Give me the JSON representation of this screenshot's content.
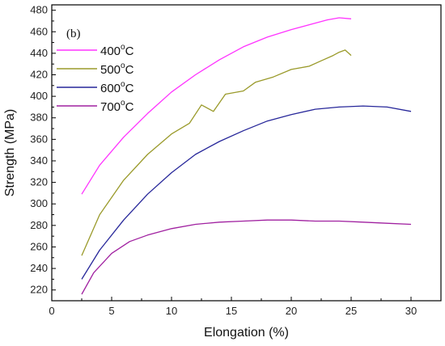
{
  "chart_data": {
    "type": "line",
    "panel_label": "(b)",
    "xlabel": "Elongation (%)",
    "ylabel": "Strength (MPa)",
    "xlim": [
      0,
      32.5
    ],
    "ylim": [
      210,
      485
    ],
    "xticks": [
      0,
      5,
      10,
      15,
      20,
      25,
      30
    ],
    "yticks": [
      220,
      240,
      260,
      280,
      300,
      320,
      340,
      360,
      380,
      400,
      420,
      440,
      460,
      480
    ],
    "grid": false,
    "legend_position": "top-left",
    "series": [
      {
        "name": "400°C",
        "label_base": "400",
        "label_sup": "o",
        "label_unit": "C",
        "color": "#ff33ff",
        "x": [
          2.5,
          4,
          6,
          8,
          10,
          12,
          14,
          16,
          18,
          20,
          22,
          23,
          24,
          25
        ],
        "y": [
          309,
          336,
          362,
          384,
          404,
          420,
          434,
          446,
          455,
          462,
          468,
          471,
          473,
          472
        ]
      },
      {
        "name": "500°C",
        "label_base": "500",
        "label_sup": "o",
        "label_unit": "C",
        "color": "#9a9a2a",
        "x": [
          2.5,
          4,
          6,
          8,
          10,
          11.5,
          12.5,
          13.5,
          14.5,
          16,
          17,
          18.5,
          20,
          21.5,
          22.5,
          23.5,
          24,
          24.5,
          25
        ],
        "y": [
          252,
          290,
          322,
          346,
          365,
          375,
          392,
          386,
          402,
          405,
          413,
          418,
          425,
          428,
          433,
          438,
          441,
          443,
          438
        ]
      },
      {
        "name": "600°C",
        "label_base": "600",
        "label_sup": "o",
        "label_unit": "C",
        "color": "#27279a",
        "x": [
          2.5,
          4,
          6,
          8,
          10,
          12,
          14,
          16,
          18,
          20,
          22,
          24,
          26,
          28,
          30
        ],
        "y": [
          230,
          257,
          285,
          309,
          329,
          346,
          358,
          368,
          377,
          383,
          388,
          390,
          391,
          390,
          386
        ]
      },
      {
        "name": "700°C",
        "label_base": "700",
        "label_sup": "o",
        "label_unit": "C",
        "color": "#a020a0",
        "x": [
          2.5,
          3.5,
          5,
          6.5,
          8,
          10,
          12,
          14,
          16,
          18,
          20,
          22,
          24,
          26,
          28,
          30
        ],
        "y": [
          216,
          236,
          254,
          265,
          271,
          277,
          281,
          283,
          284,
          285,
          285,
          284,
          284,
          283,
          282,
          281
        ]
      }
    ]
  }
}
